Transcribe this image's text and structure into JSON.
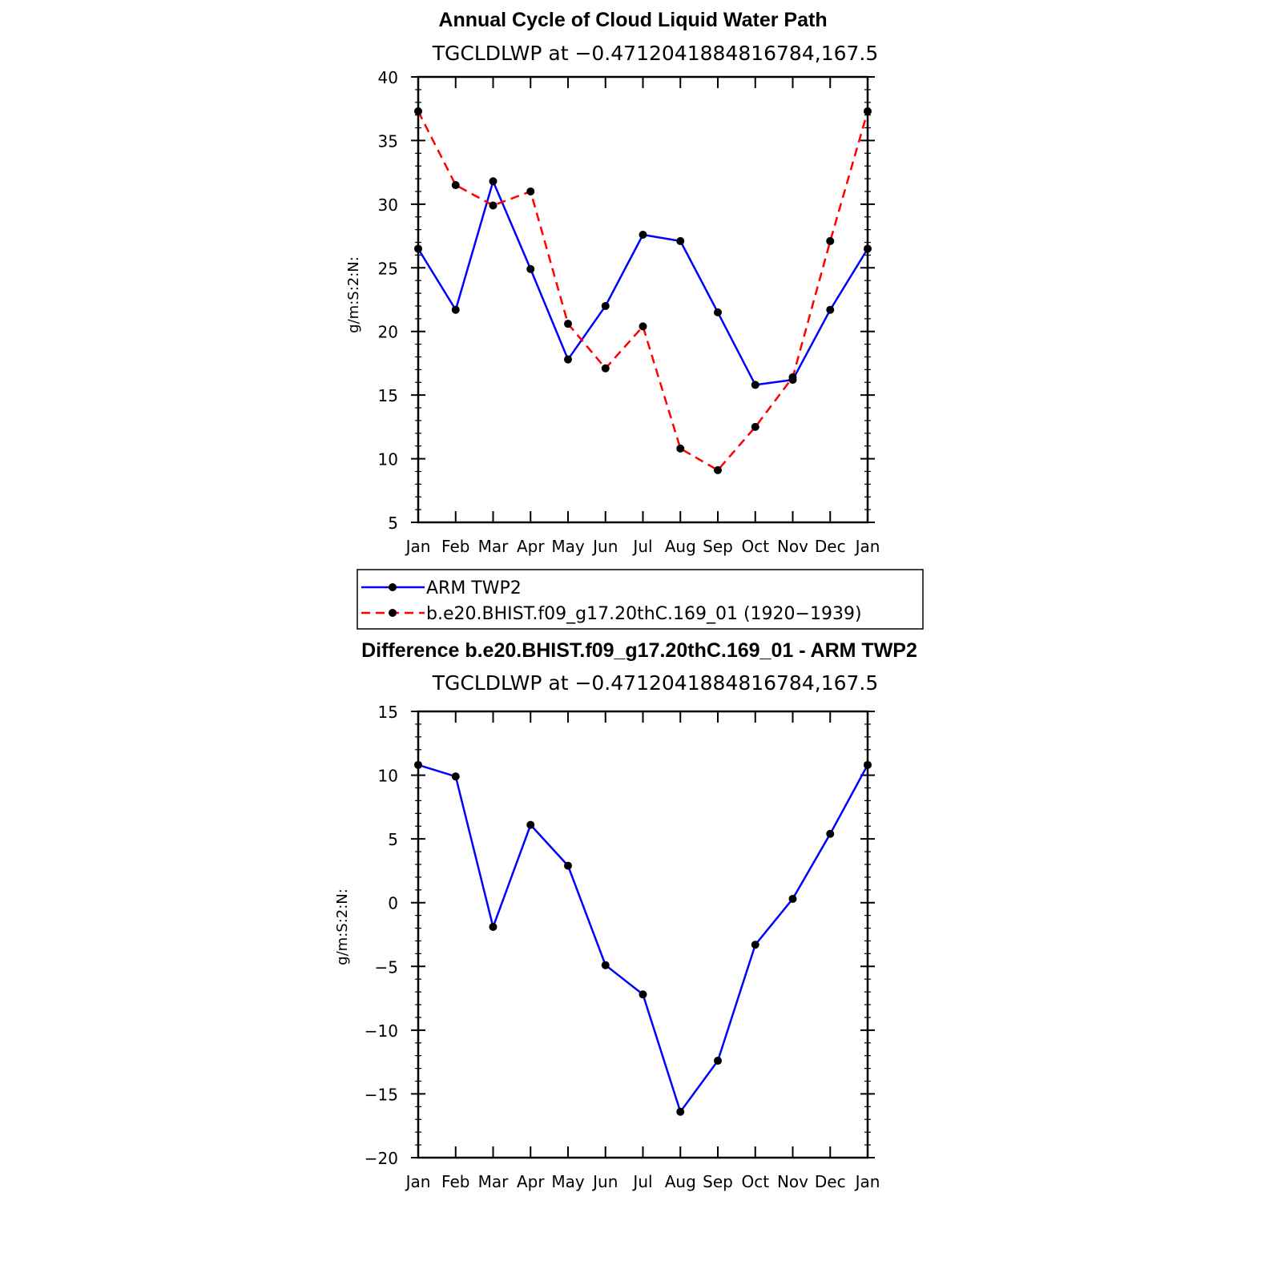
{
  "chart_data": [
    {
      "type": "line",
      "title": "Annual Cycle of Cloud Liquid Water Path",
      "subtitle": "TGCLDLWP at −0.4712041884816784,167.5",
      "ylabel": "g/m:S:2:N:",
      "xlabel": "",
      "categories": [
        "Jan",
        "Feb",
        "Mar",
        "Apr",
        "May",
        "Jun",
        "Jul",
        "Aug",
        "Sep",
        "Oct",
        "Nov",
        "Dec",
        "Jan"
      ],
      "ylim": [
        5,
        40
      ],
      "yticks": [
        "5",
        "10",
        "15",
        "20",
        "25",
        "30",
        "35",
        "40"
      ],
      "grid": false,
      "series": [
        {
          "name": "ARM  TWP2",
          "color": "#0000ff",
          "dash": "solid",
          "values": [
            26.5,
            21.7,
            31.8,
            24.9,
            17.8,
            22.0,
            27.6,
            27.1,
            21.5,
            15.8,
            16.2,
            21.7,
            26.5
          ]
        },
        {
          "name": "b.e20.BHIST.f09_g17.20thC.169_01 (1920−1939)",
          "color": "#ff0000",
          "dash": "dashed",
          "values": [
            37.3,
            31.5,
            29.9,
            31.0,
            20.6,
            17.1,
            20.4,
            10.8,
            9.1,
            12.5,
            16.4,
            27.1,
            37.3
          ]
        }
      ],
      "legend_position": "below"
    },
    {
      "type": "line",
      "title": "Difference b.e20.BHIST.f09_g17.20thC.169_01 - ARM TWP2",
      "subtitle": "TGCLDLWP at −0.4712041884816784,167.5",
      "ylabel": "g/m:S:2:N:",
      "xlabel": "",
      "categories": [
        "Jan",
        "Feb",
        "Mar",
        "Apr",
        "May",
        "Jun",
        "Jul",
        "Aug",
        "Sep",
        "Oct",
        "Nov",
        "Dec",
        "Jan"
      ],
      "ylim": [
        -20,
        15
      ],
      "yticks": [
        "−20",
        "−15",
        "−10",
        "−5",
        "0",
        "5",
        "10",
        "15"
      ],
      "grid": false,
      "series": [
        {
          "color": "#0000ff",
          "dash": "solid",
          "values": [
            10.8,
            9.9,
            -1.9,
            6.1,
            2.9,
            -4.9,
            -7.2,
            -16.4,
            -12.4,
            -3.3,
            0.3,
            5.4,
            10.8
          ]
        }
      ]
    }
  ]
}
